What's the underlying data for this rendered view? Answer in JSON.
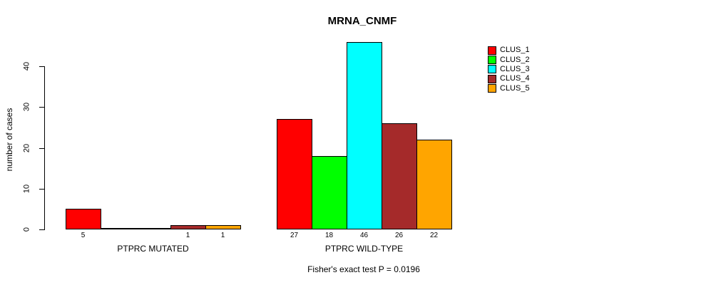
{
  "chart_data": {
    "type": "bar",
    "title": "MRNA_CNMF",
    "ylabel": "number of cases",
    "xlabel": "",
    "yticks": [
      0,
      10,
      20,
      30,
      40
    ],
    "ylim": [
      0,
      46
    ],
    "grid": false,
    "legend_position": "top-right",
    "categories": [
      "PTPRC MUTATED",
      "PTPRC WILD-TYPE"
    ],
    "series": [
      {
        "name": "CLUS_1",
        "color": "#FF0000",
        "values": [
          5,
          27
        ]
      },
      {
        "name": "CLUS_2",
        "color": "#00FF00",
        "values": [
          0,
          18
        ]
      },
      {
        "name": "CLUS_3",
        "color": "#00FFFF",
        "values": [
          0,
          46
        ]
      },
      {
        "name": "CLUS_4",
        "color": "#A52A2A",
        "values": [
          1,
          26
        ]
      },
      {
        "name": "CLUS_5",
        "color": "#FFA500",
        "values": [
          1,
          22
        ]
      }
    ],
    "bar_value_labels": "shown under each nonzero bar",
    "annotation": "Fisher's exact test P = 0.0196"
  }
}
